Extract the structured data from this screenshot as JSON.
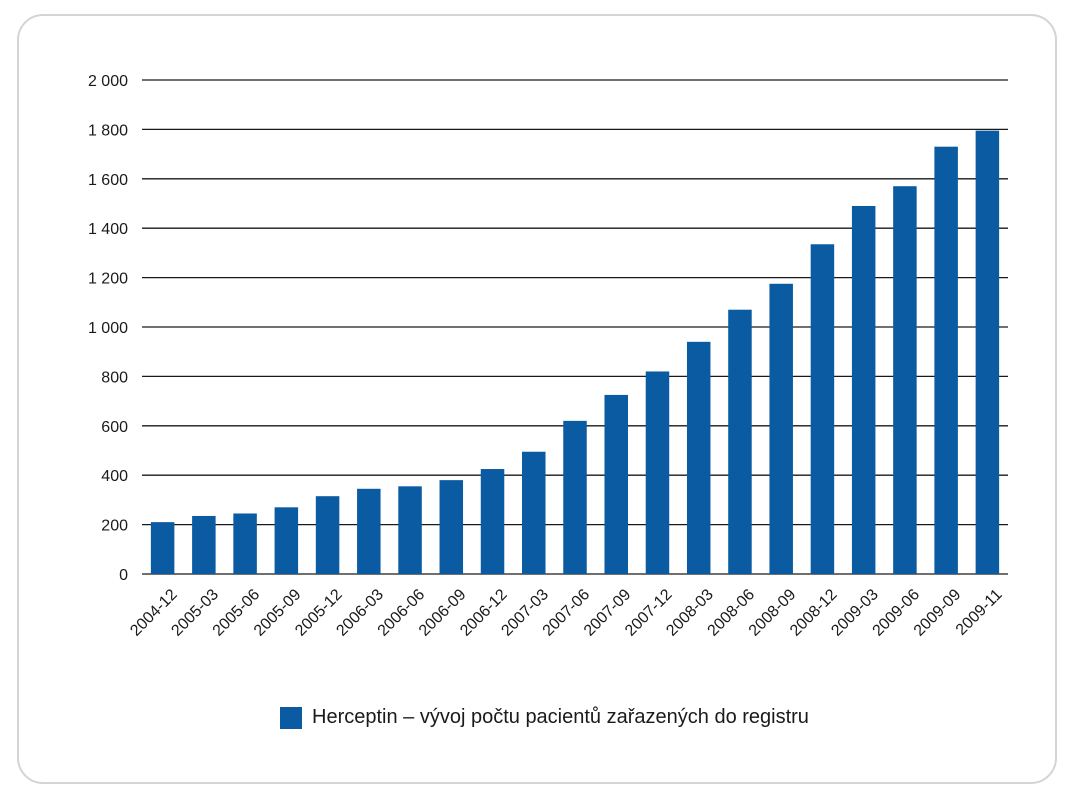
{
  "chart_data": {
    "type": "bar",
    "categories": [
      "2004-12",
      "2005-03",
      "2005-06",
      "2005-09",
      "2005-12",
      "2006-03",
      "2006-06",
      "2006-09",
      "2006-12",
      "2007-03",
      "2007-06",
      "2007-09",
      "2007-12",
      "2008-03",
      "2008-06",
      "2008-09",
      "2008-12",
      "2009-03",
      "2009-06",
      "2009-09",
      "2009-11"
    ],
    "series": [
      {
        "name": "Herceptin – vývoj počtu pacientů zařazených do registru",
        "values": [
          210,
          235,
          245,
          270,
          315,
          345,
          355,
          380,
          425,
          495,
          620,
          725,
          820,
          940,
          1070,
          1175,
          1335,
          1490,
          1570,
          1730,
          1795
        ]
      }
    ],
    "ylim": [
      0,
      2000
    ],
    "yticks": [
      0,
      200,
      400,
      600,
      800,
      1000,
      1200,
      1400,
      1600,
      1800,
      2000
    ],
    "ytick_labels": [
      "0",
      "200",
      "400",
      "600",
      "800",
      "1 000",
      "1 200",
      "1 400",
      "1 600",
      "1 800",
      "2 000"
    ],
    "grid": true,
    "legend_position": "bottom",
    "bar_color": "#0b5ba3"
  }
}
